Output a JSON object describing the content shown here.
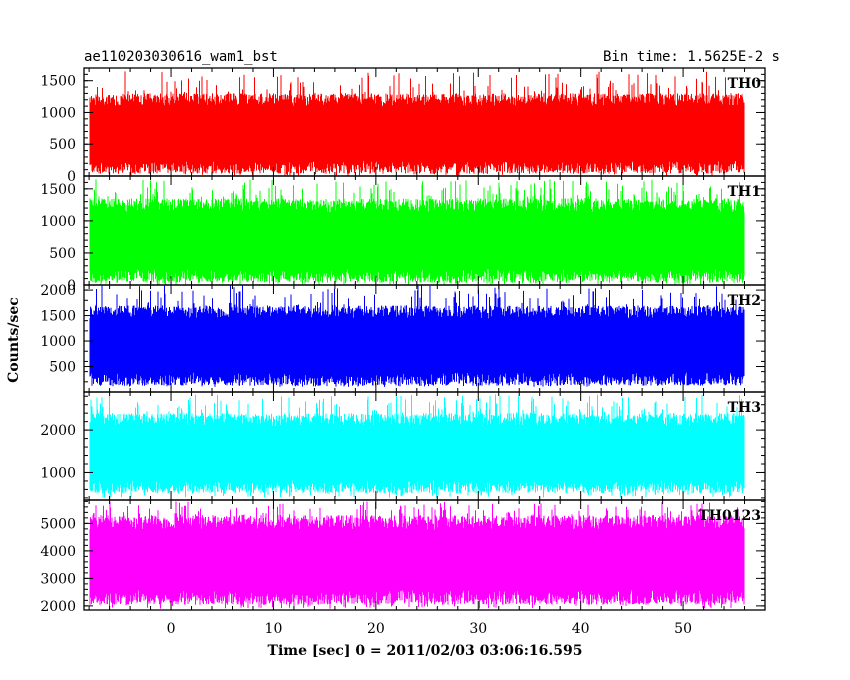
{
  "header": {
    "left_title": "ae110203030616_wam1_bst",
    "right_title": "Bin time: 1.5625E-2 s"
  },
  "chart_data": {
    "type": "line",
    "xlabel": "Time [sec] 0 = 2011/02/03 03:06:16.595",
    "ylabel": "Counts/sec",
    "xlim": [
      -8.5,
      58
    ],
    "data_x_range": [
      -8,
      56
    ],
    "x_ticks": [
      0,
      10,
      20,
      30,
      40,
      50
    ],
    "panels": [
      {
        "name": "TH0",
        "color": "#ff0000",
        "ylim": [
          0,
          1700
        ],
        "y_ticks": [
          0,
          500,
          1000,
          1500
        ],
        "typical_low": 100,
        "typical_high": 1300,
        "envelope_min": 0,
        "envelope_max": 1650
      },
      {
        "name": "TH1",
        "color": "#00ff00",
        "ylim": [
          0,
          1700
        ],
        "y_ticks": [
          0,
          500,
          1000,
          1500
        ],
        "typical_low": 100,
        "typical_high": 1350,
        "envelope_min": 0,
        "envelope_max": 1650
      },
      {
        "name": "TH2",
        "color": "#0000ff",
        "ylim": [
          0,
          2100
        ],
        "y_ticks": [
          500,
          1000,
          1500,
          2000
        ],
        "typical_low": 200,
        "typical_high": 1700,
        "envelope_min": 100,
        "envelope_max": 2100
      },
      {
        "name": "TH3",
        "color": "#00ffff",
        "ylim": [
          350,
          2900
        ],
        "y_ticks": [
          1000,
          2000
        ],
        "typical_low": 600,
        "typical_high": 2400,
        "envelope_min": 400,
        "envelope_max": 2850
      },
      {
        "name": "TH0123",
        "color": "#ff00ff",
        "ylim": [
          1850,
          5850
        ],
        "y_ticks": [
          2000,
          3000,
          4000,
          5000
        ],
        "typical_low": 2200,
        "typical_high": 5300,
        "envelope_min": 1900,
        "envelope_max": 5800
      }
    ]
  }
}
